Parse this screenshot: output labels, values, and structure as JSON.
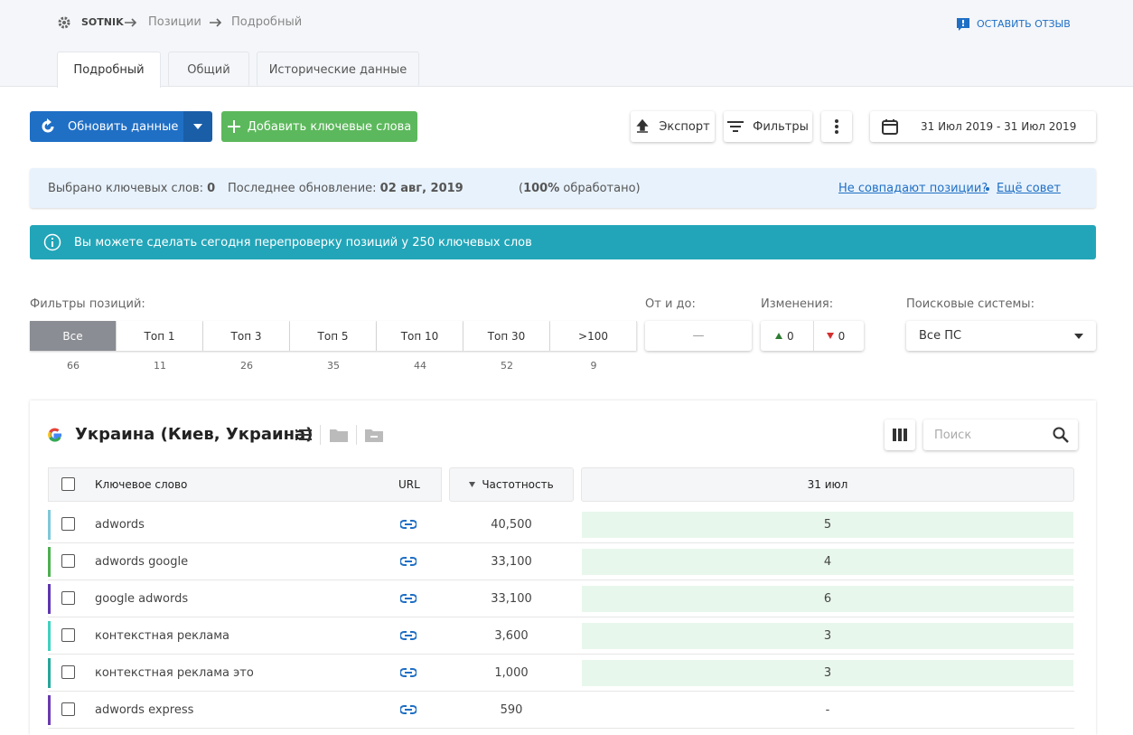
{
  "breadcrumb": [
    "SOTNIK",
    "Позиции",
    "Подробный"
  ],
  "feedback": "ОСТАВИТЬ ОТЗЫВ",
  "tabs": [
    "Подробный",
    "Общий",
    "Исторические данные"
  ],
  "toolbar": {
    "refresh": "Обновить данные",
    "add": "Добавить ключевые слова",
    "export": "Экспорт",
    "filters": "Фильтры",
    "date_range": "31 Июл 2019 - 31 Июл 2019"
  },
  "status": {
    "selected_label": "Выбрано ключевых слов:",
    "selected": "0",
    "last_update_label": "Последнее обновление:",
    "last_update": "02 авг, 2019",
    "processed": [
      "(",
      "100%",
      " обработано)"
    ],
    "link1": "Не совпадают позиции?",
    "link2": "Ещё совет"
  },
  "notice": "Вы можете сделать сегодня перепроверку позиций у 250 ключевых слов",
  "filters": {
    "label": "Фильтры позиций:",
    "buttons": [
      {
        "label": "Все",
        "count": "66"
      },
      {
        "label": "Топ 1",
        "count": "11"
      },
      {
        "label": "Топ 3",
        "count": "26"
      },
      {
        "label": "Топ 5",
        "count": "35"
      },
      {
        "label": "Топ 10",
        "count": "44"
      },
      {
        "label": "Топ 30",
        "count": "52"
      },
      {
        "label": ">100",
        "count": "9"
      }
    ],
    "range_label": "От и до:",
    "range_sep": "—",
    "changes_label": "Изменения:",
    "up": "0",
    "down": "0",
    "engines_label": "Поисковые системы:",
    "engine": "Все ПС"
  },
  "table": {
    "title": "Украина (Киев, Украина)",
    "search_placeholder": "Поиск",
    "columns": [
      "Ключевое слово",
      "URL",
      "Частотность",
      "31 июл"
    ],
    "rows": [
      {
        "keyword": "adwords",
        "frequency": "40,500",
        "position": "5",
        "color": "#7ec8d8"
      },
      {
        "keyword": "adwords google",
        "frequency": "33,100",
        "position": "4",
        "color": "#4caf50"
      },
      {
        "keyword": "google adwords",
        "frequency": "33,100",
        "position": "6",
        "color": "#5e35b1"
      },
      {
        "keyword": "контекстная реклама",
        "frequency": "3,600",
        "position": "3",
        "color": "#40d0c0"
      },
      {
        "keyword": "контекстная реклама это",
        "frequency": "1,000",
        "position": "3",
        "color": "#26a69a"
      },
      {
        "keyword": "adwords express",
        "frequency": "590",
        "position": "-",
        "color": "#6a3ab0"
      }
    ]
  }
}
